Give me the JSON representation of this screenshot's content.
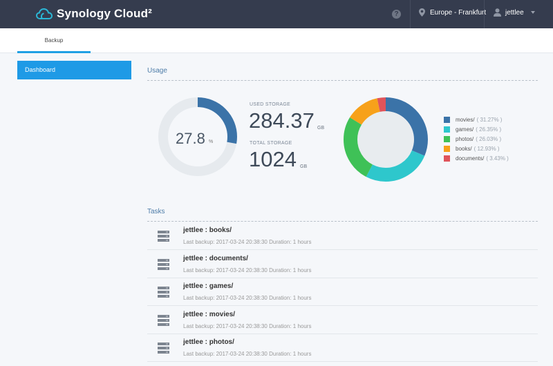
{
  "header": {
    "app_title": "Synology Cloud²",
    "help_label": "?",
    "region": "Europe - Frankfurt",
    "user": "jettlee"
  },
  "tabs": [
    {
      "label": "Backup"
    }
  ],
  "sidebar": {
    "items": [
      {
        "label": "Dashboard"
      }
    ]
  },
  "usage": {
    "title": "Usage",
    "percent_value": "27.8",
    "percent_unit": "%",
    "percent_fraction": 0.278,
    "used_label": "USED STORAGE",
    "used_value": "284.37",
    "used_unit": "GB",
    "total_label": "TOTAL STORAGE",
    "total_value": "1024",
    "total_unit": "GB",
    "gauge_color": "#3b73a8",
    "gauge_track_color": "#e6eaee",
    "breakdown": [
      {
        "name": "movies/",
        "pct_text": "( 31.27% )",
        "value": 31.27,
        "color": "#3b73a8"
      },
      {
        "name": "games/",
        "pct_text": "( 26.35% )",
        "value": 26.35,
        "color": "#2ec7cc"
      },
      {
        "name": "photos/",
        "pct_text": "( 26.03% )",
        "value": 26.03,
        "color": "#3fc157"
      },
      {
        "name": "books/",
        "pct_text": "( 12.93% )",
        "value": 12.93,
        "color": "#f7a11a"
      },
      {
        "name": "documents/",
        "pct_text": "( 3.43% )",
        "value": 3.43,
        "color": "#e0545a"
      }
    ]
  },
  "tasks": {
    "title": "Tasks",
    "items": [
      {
        "name": "jettlee : books/",
        "meta": "Last backup: 2017-03-24 20:38:30 Duration: 1 hours"
      },
      {
        "name": "jettlee : documents/",
        "meta": "Last backup: 2017-03-24 20:38:30 Duration: 1 hours"
      },
      {
        "name": "jettlee : games/",
        "meta": "Last backup: 2017-03-24 20:38:30 Duration: 1 hours"
      },
      {
        "name": "jettlee : movies/",
        "meta": "Last backup: 2017-03-24 20:38:30 Duration: 1 hours"
      },
      {
        "name": "jettlee : photos/",
        "meta": "Last backup: 2017-03-24 20:38:30 Duration: 1 hours"
      }
    ]
  }
}
